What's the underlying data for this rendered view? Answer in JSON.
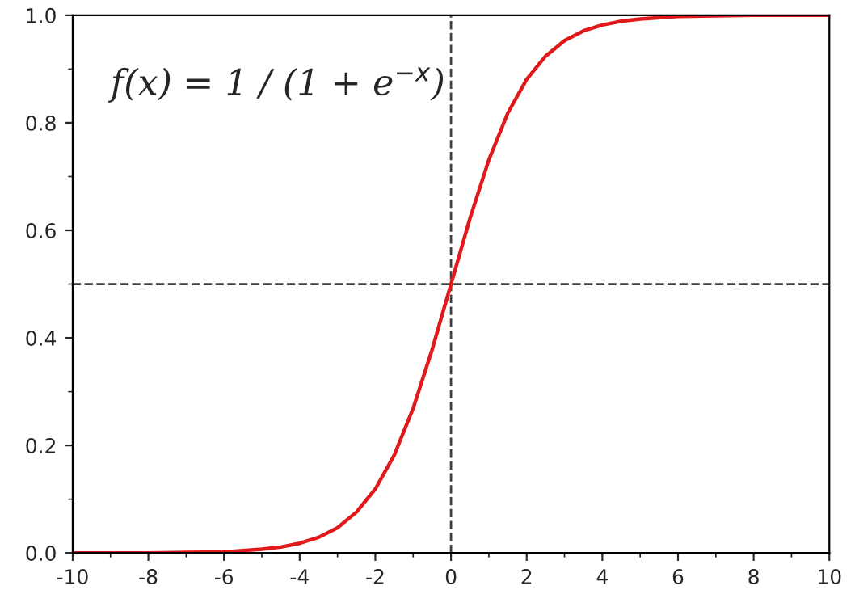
{
  "chart_data": {
    "type": "line",
    "x": [
      -10,
      -9,
      -8,
      -7,
      -6,
      -5,
      -4.5,
      -4,
      -3.5,
      -3,
      -2.5,
      -2,
      -1.5,
      -1,
      -0.5,
      0,
      0.5,
      1,
      1.5,
      2,
      2.5,
      3,
      3.5,
      4,
      4.5,
      5,
      6,
      7,
      8,
      9,
      10
    ],
    "series": [
      {
        "color": "#e01a1a",
        "values": [
          0.0,
          0.0,
          0.0,
          0.001,
          0.002,
          0.007,
          0.011,
          0.018,
          0.029,
          0.047,
          0.076,
          0.119,
          0.182,
          0.269,
          0.378,
          0.5,
          0.622,
          0.731,
          0.818,
          0.881,
          0.924,
          0.953,
          0.971,
          0.982,
          0.989,
          0.993,
          0.998,
          0.999,
          1.0,
          1.0,
          1.0
        ]
      }
    ],
    "xlim": [
      -10,
      10
    ],
    "xticks": [
      -10,
      -8,
      -6,
      -4,
      -2,
      0,
      2,
      4,
      6,
      8,
      10
    ],
    "ylim": [
      0,
      1
    ],
    "yticks": [
      {
        "value": 0,
        "label": "0.0"
      },
      0.2,
      0.4,
      0.6,
      0.8,
      {
        "value": 1,
        "label": "1.0"
      }
    ],
    "ref_lines": [
      {
        "axis": "x",
        "value": 0,
        "color": "#404040",
        "line_style": "dashed"
      },
      {
        "axis": "y",
        "value": 0.5,
        "color": "#404040",
        "line_style": "dashed"
      }
    ],
    "annotations": [
      "f(x) = 1 / (1 + e$^{−x}$)"
    ],
    "grid": false,
    "legend": false,
    "marker": "none",
    "line_style": "solid"
  }
}
